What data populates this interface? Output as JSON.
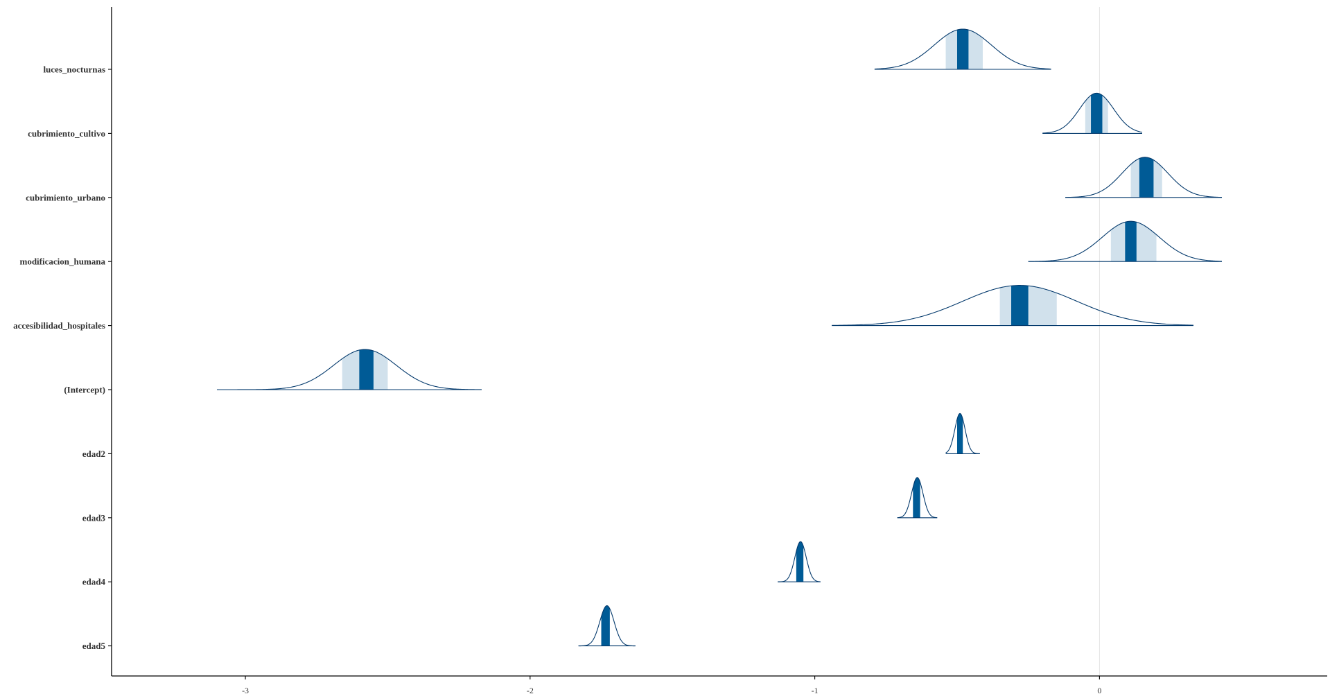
{
  "chart_data": {
    "type": "density-interval",
    "title": "",
    "xlabel": "",
    "ylabel": "",
    "xlim": [
      -3.47,
      0.8
    ],
    "x_ticks": [
      -3,
      -2,
      -1,
      0
    ],
    "x_tick_labels": [
      "-3",
      "-2",
      "-1",
      "0"
    ],
    "reference_line_x": 0,
    "grid": false,
    "colors": {
      "dark": "#005b96",
      "light": "#d1e1ec",
      "outline": "#03396c",
      "ref_line": "#e3e3e3"
    },
    "categories": [
      "luces_nocturnas",
      "cubrimiento_cultivo",
      "cubrimiento_urbano",
      "modificacion_humana",
      "accesibilidad_hospitales",
      "(Intercept)",
      "edad2",
      "edad3",
      "edad4",
      "edad5"
    ],
    "parameters": [
      {
        "name": "luces_nocturnas",
        "median": -0.48,
        "sd": 0.1,
        "inner": [
          -0.5,
          -0.46
        ],
        "outer": [
          -0.54,
          -0.41
        ],
        "range": [
          -0.79,
          -0.17
        ]
      },
      {
        "name": "cubrimiento_cultivo",
        "median": -0.01,
        "sd": 0.06,
        "inner": [
          -0.03,
          0.01
        ],
        "outer": [
          -0.05,
          0.03
        ],
        "range": [
          -0.2,
          0.15
        ]
      },
      {
        "name": "cubrimiento_urbano",
        "median": 0.16,
        "sd": 0.08,
        "inner": [
          0.14,
          0.19
        ],
        "outer": [
          0.11,
          0.22
        ],
        "range": [
          -0.12,
          0.43
        ]
      },
      {
        "name": "modificacion_humana",
        "median": 0.11,
        "sd": 0.1,
        "inner": [
          0.09,
          0.13
        ],
        "outer": [
          0.04,
          0.2
        ],
        "range": [
          -0.25,
          0.43
        ]
      },
      {
        "name": "accesibilidad_hospitales",
        "median": -0.28,
        "sd": 0.2,
        "inner": [
          -0.31,
          -0.25
        ],
        "outer": [
          -0.35,
          -0.15
        ],
        "range": [
          -0.94,
          0.33
        ]
      },
      {
        "name": "(Intercept)",
        "median": -2.58,
        "sd": 0.11,
        "inner": [
          -2.6,
          -2.55
        ],
        "outer": [
          -2.66,
          -2.5
        ],
        "range": [
          -3.1,
          -2.17
        ]
      },
      {
        "name": "edad2",
        "median": -0.49,
        "sd": 0.018,
        "inner": [
          -0.5,
          -0.48
        ],
        "outer": [
          -0.5,
          -0.48
        ],
        "range": [
          -0.54,
          -0.42
        ]
      },
      {
        "name": "edad3",
        "median": -0.64,
        "sd": 0.02,
        "inner": [
          -0.655,
          -0.63
        ],
        "outer": [
          -0.655,
          -0.63
        ],
        "range": [
          -0.71,
          -0.57
        ]
      },
      {
        "name": "edad4",
        "median": -1.05,
        "sd": 0.02,
        "inner": [
          -1.065,
          -1.04
        ],
        "outer": [
          -1.065,
          -1.04
        ],
        "range": [
          -1.13,
          -0.98
        ]
      },
      {
        "name": "edad5",
        "median": -1.73,
        "sd": 0.025,
        "inner": [
          -1.75,
          -1.72
        ],
        "outer": [
          -1.75,
          -1.72
        ],
        "range": [
          -1.83,
          -1.63
        ]
      }
    ]
  }
}
